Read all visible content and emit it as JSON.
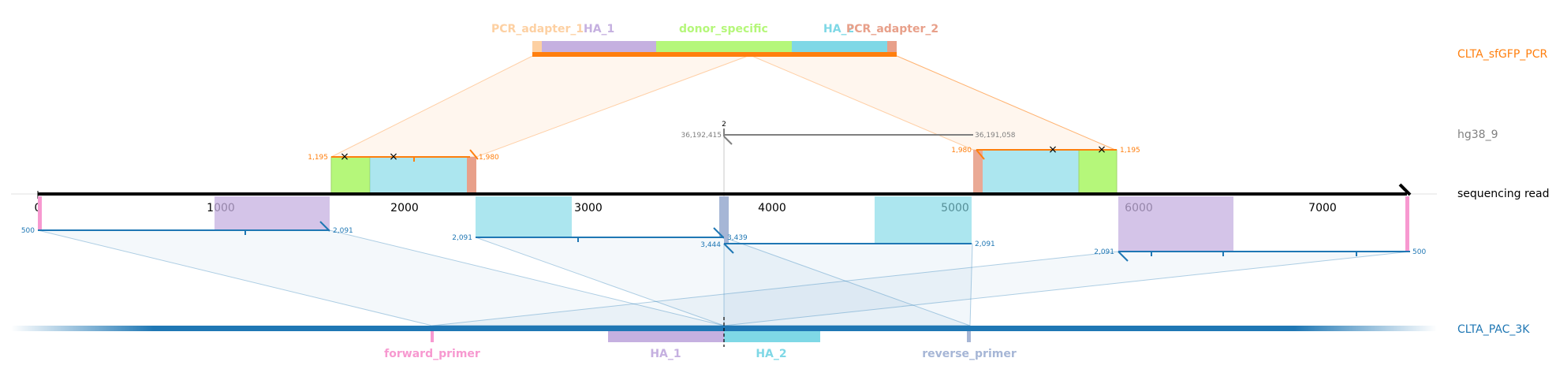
{
  "colors": {
    "read_axis": "#000000",
    "orange": "#ff7f0e",
    "blue": "#1f77b4",
    "grey": "#808080",
    "ha1": "#c5b0e0",
    "ha2": "#7fd8e6",
    "donor_specific": "#b5f77a",
    "pcr_adapter_1": "#fdd0a2",
    "pcr_adapter_2": "#e8a08a",
    "forward_primer": "#f799d0",
    "reverse_primer": "#a6b6d6"
  },
  "tracks": {
    "pcr_template": "CLTA_sfGFP_PCR",
    "genome": "hg38_9",
    "read": "sequencing read",
    "amplicon": "CLTA_PAC_3K"
  },
  "features": {
    "pcr_adapter_1": "PCR_adapter_1",
    "ha_1": "HA_1",
    "donor_specific": "donor_specific",
    "ha_2": "HA_2",
    "pcr_adapter_2": "PCR_adapter_2",
    "forward_primer": "forward_primer",
    "reverse_primer": "reverse_primer"
  },
  "read_axis_ticks": [
    "0",
    "1000",
    "2000",
    "3000",
    "4000",
    "5000",
    "6000",
    "7000"
  ],
  "coordinates": {
    "donor_left_start": "1,195",
    "donor_left_end": "1,980",
    "donor_right_start": "1,980",
    "donor_right_end": "1,195",
    "genome_label": "2",
    "genome_left": "36,192,415",
    "genome_right": "36,191,058",
    "amp1_start": "500",
    "amp1_end": "2,091",
    "amp2_start": "2,091",
    "amp2_end": "3,444",
    "amp3_start": "3,439",
    "amp3_end": "2,091",
    "amp4_start": "2,091",
    "amp4_end": "500"
  }
}
